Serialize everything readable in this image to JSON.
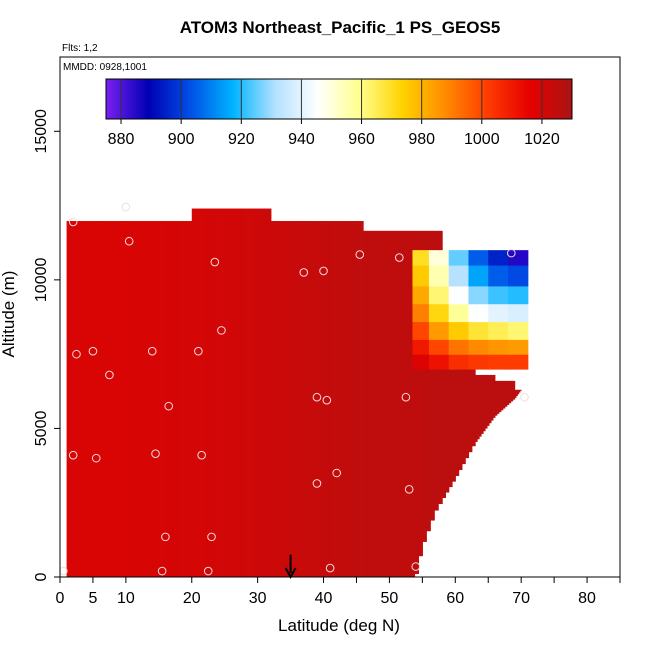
{
  "chart_data": {
    "type": "heatmap",
    "title": "ATOM3 Northeast_Pacific_1 PS_GEOS5",
    "subtitle_flights": "Flts: 1,2",
    "subtitle_dates": "MMDD: 0928,1001",
    "xlabel": "Latitude (deg N)",
    "ylabel": "Altitude (m)",
    "xlim": [
      0,
      85
    ],
    "ylim": [
      0,
      17500
    ],
    "x_ticks": [
      0,
      5,
      10,
      20,
      30,
      40,
      50,
      60,
      70,
      80
    ],
    "x_minor_ticks": [
      45,
      55,
      65,
      75,
      85
    ],
    "y_ticks": [
      0,
      5000,
      10000,
      15000
    ],
    "colorbar": {
      "min": 875,
      "max": 1030,
      "ticks": [
        880,
        900,
        920,
        940,
        960,
        980,
        1000,
        1020
      ],
      "colors": [
        "#7a20f0",
        "#0000b4",
        "#0050e6",
        "#00b4ff",
        "#b4e1ff",
        "#ffffff",
        "#ffff8c",
        "#ffd200",
        "#ff8c00",
        "#ff3c00",
        "#e60000",
        "#aa1414"
      ],
      "units_hint": "hPa"
    },
    "field_columns": [
      {
        "lat": 1,
        "top": 11980,
        "value": 1019
      },
      {
        "lat": 10,
        "top": 11980,
        "value": 1019
      },
      {
        "lat": 20,
        "top": 12400,
        "value": 1020
      },
      {
        "lat": 27,
        "top": 12400,
        "value": 1021
      },
      {
        "lat": 32,
        "top": 11980,
        "value": 1022
      },
      {
        "lat": 36,
        "top": 11980,
        "value": 1023
      },
      {
        "lat": 41,
        "top": 11980,
        "value": 1024
      },
      {
        "lat": 46,
        "top": 11650,
        "value": 1025
      },
      {
        "lat": 52,
        "top": 11650,
        "value": 1025
      },
      {
        "lat": 58,
        "top": 7000,
        "value": 1026
      },
      {
        "lat": 63,
        "top": 6800,
        "value": 1026
      },
      {
        "lat": 66,
        "top": 6600,
        "value": 1026
      },
      {
        "lat": 69,
        "top": 6300,
        "value": 1026
      }
    ],
    "field_bottom_edge": [
      {
        "lat": 54,
        "alt": 0
      },
      {
        "lat": 55,
        "alt": 1000
      },
      {
        "lat": 57,
        "alt": 2200
      },
      {
        "lat": 60,
        "alt": 3300
      },
      {
        "lat": 63,
        "alt": 4500
      },
      {
        "lat": 66,
        "alt": 5400
      },
      {
        "lat": 69,
        "alt": 6000
      },
      {
        "lat": 71,
        "alt": 6600
      }
    ],
    "column_profiles": [
      {
        "lat": 53.5,
        "levels": [
          {
            "alt": 7000,
            "value": 1018
          },
          {
            "alt": 7500,
            "value": 1010
          },
          {
            "alt": 8000,
            "value": 1000
          },
          {
            "alt": 8600,
            "value": 990
          },
          {
            "alt": 9200,
            "value": 982
          },
          {
            "alt": 9800,
            "value": 975
          },
          {
            "alt": 10500,
            "value": 970
          }
        ]
      },
      {
        "lat": 56,
        "levels": [
          {
            "alt": 7000,
            "value": 1012
          },
          {
            "alt": 7500,
            "value": 1000
          },
          {
            "alt": 8000,
            "value": 985
          },
          {
            "alt": 8600,
            "value": 972
          },
          {
            "alt": 9200,
            "value": 962
          },
          {
            "alt": 9800,
            "value": 955
          },
          {
            "alt": 10500,
            "value": 950
          }
        ]
      },
      {
        "lat": 59,
        "levels": [
          {
            "alt": 7000,
            "value": 1005
          },
          {
            "alt": 7500,
            "value": 992
          },
          {
            "alt": 8000,
            "value": 975
          },
          {
            "alt": 8600,
            "value": 958
          },
          {
            "alt": 9200,
            "value": 945
          },
          {
            "alt": 9800,
            "value": 932
          },
          {
            "alt": 10500,
            "value": 925
          }
        ]
      },
      {
        "lat": 62,
        "levels": [
          {
            "alt": 7000,
            "value": 1003
          },
          {
            "alt": 7500,
            "value": 988
          },
          {
            "alt": 8000,
            "value": 968
          },
          {
            "alt": 8600,
            "value": 945
          },
          {
            "alt": 9200,
            "value": 928
          },
          {
            "alt": 9800,
            "value": 915
          },
          {
            "alt": 10500,
            "value": 905
          }
        ]
      },
      {
        "lat": 65,
        "levels": [
          {
            "alt": 7000,
            "value": 1002
          },
          {
            "alt": 7500,
            "value": 986
          },
          {
            "alt": 8000,
            "value": 965
          },
          {
            "alt": 8600,
            "value": 940
          },
          {
            "alt": 9200,
            "value": 922
          },
          {
            "alt": 9800,
            "value": 905
          },
          {
            "alt": 10500,
            "value": 895
          }
        ]
      },
      {
        "lat": 68,
        "levels": [
          {
            "alt": 7000,
            "value": 1002
          },
          {
            "alt": 7500,
            "value": 985
          },
          {
            "alt": 8000,
            "value": 962
          },
          {
            "alt": 8600,
            "value": 938
          },
          {
            "alt": 9200,
            "value": 920
          },
          {
            "alt": 9800,
            "value": 902
          },
          {
            "alt": 10500,
            "value": 885
          }
        ]
      }
    ],
    "sample_points": [
      {
        "x": 0.5,
        "y": 200
      },
      {
        "x": 2,
        "y": 4100
      },
      {
        "x": 2,
        "y": 11950
      },
      {
        "x": 2.5,
        "y": 7500
      },
      {
        "x": 5,
        "y": 7600
      },
      {
        "x": 5.5,
        "y": 4000
      },
      {
        "x": 7.5,
        "y": 6800
      },
      {
        "x": 10,
        "y": 12450
      },
      {
        "x": 10.5,
        "y": 11300
      },
      {
        "x": 14,
        "y": 7600
      },
      {
        "x": 14.5,
        "y": 4150
      },
      {
        "x": 15.5,
        "y": 200
      },
      {
        "x": 16,
        "y": 1350
      },
      {
        "x": 16.5,
        "y": 5750
      },
      {
        "x": 21,
        "y": 7600
      },
      {
        "x": 21.5,
        "y": 4100
      },
      {
        "x": 22.5,
        "y": 200
      },
      {
        "x": 23,
        "y": 1350
      },
      {
        "x": 23.5,
        "y": 10600
      },
      {
        "x": 24.5,
        "y": 8300
      },
      {
        "x": 37,
        "y": 10250
      },
      {
        "x": 39,
        "y": 6050
      },
      {
        "x": 39,
        "y": 3150
      },
      {
        "x": 40,
        "y": 10300
      },
      {
        "x": 40.5,
        "y": 5950
      },
      {
        "x": 41,
        "y": 300
      },
      {
        "x": 42,
        "y": 3500
      },
      {
        "x": 45.5,
        "y": 10850
      },
      {
        "x": 51.5,
        "y": 10750
      },
      {
        "x": 52.5,
        "y": 6050
      },
      {
        "x": 53,
        "y": 2950
      },
      {
        "x": 54,
        "y": 350
      },
      {
        "x": 68.5,
        "y": 10900
      },
      {
        "x": 70.5,
        "y": 6050
      }
    ],
    "arrow": {
      "x": 35,
      "y_from": 750,
      "y_to": 0
    }
  }
}
